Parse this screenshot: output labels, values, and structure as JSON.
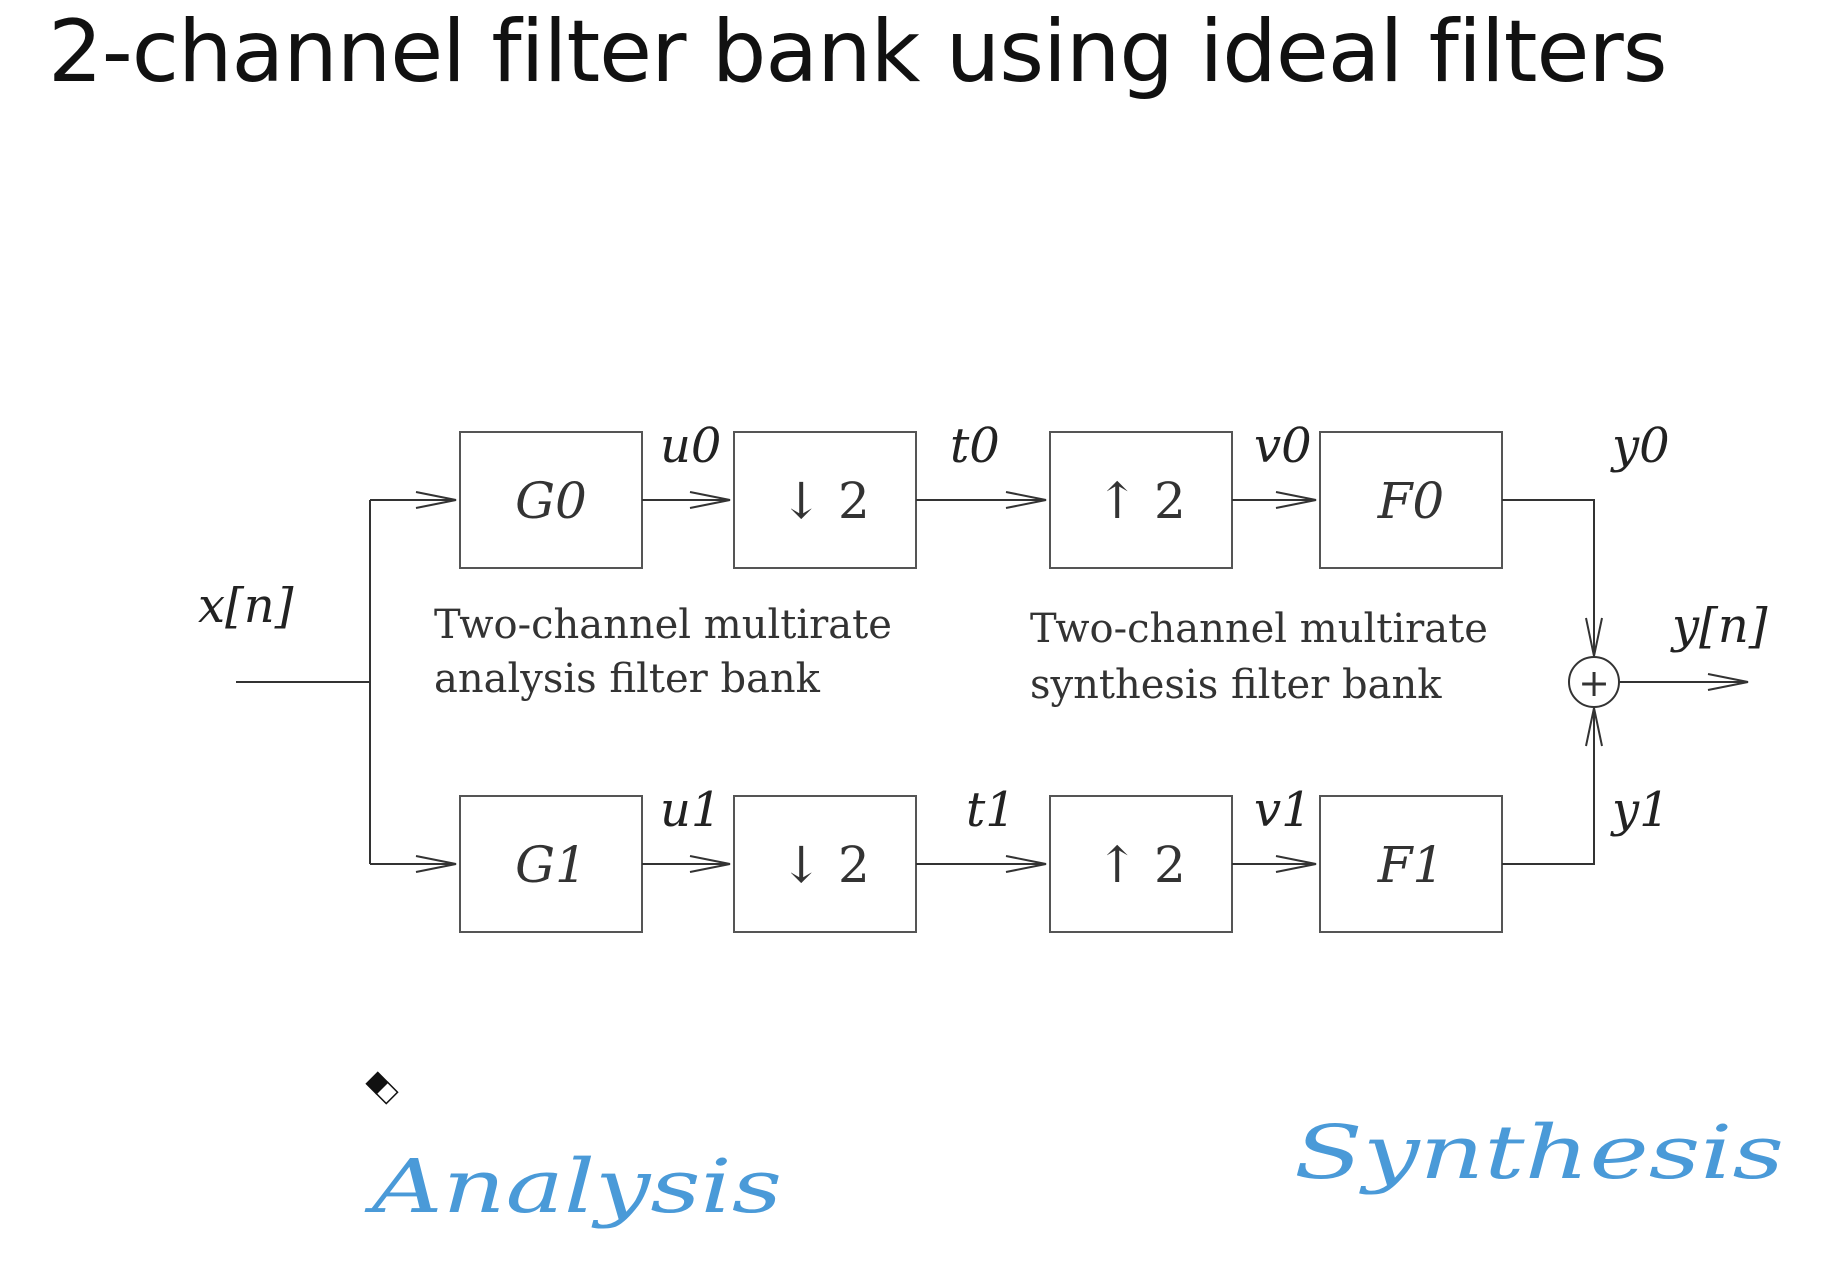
{
  "title": "2-channel filter bank using ideal filters",
  "blocks": {
    "g0": "G0",
    "g1": "G1",
    "down0": "↓ 2",
    "down1": "↓ 2",
    "up0": "↑ 2",
    "up1": "↑ 2",
    "f0": "F0",
    "f1": "F1",
    "sum": "+"
  },
  "signals": {
    "input": "x[n]",
    "u0": "u0",
    "u1": "u1",
    "t0": "t0",
    "t1": "t1",
    "v0": "v0",
    "v1": "v1",
    "y0": "y0",
    "y1": "y1",
    "output": "y[n]"
  },
  "captions": {
    "analysis_line1": "Two-channel multirate",
    "analysis_line2": "analysis filter bank",
    "synthesis_line1": "Two-channel multirate",
    "synthesis_line2": "synthesis filter bank"
  },
  "annotations": {
    "analysis": "Analysis",
    "synthesis": "Synthesis",
    "ink_color": "#4a9ad8"
  }
}
